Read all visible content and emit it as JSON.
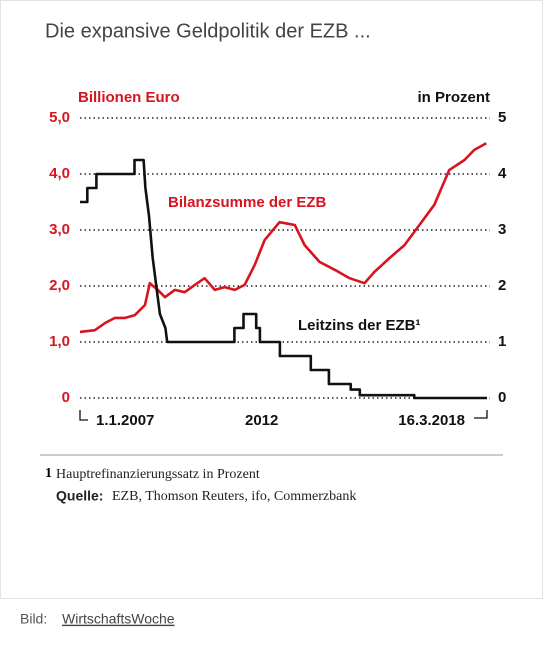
{
  "chart_data": {
    "type": "line",
    "title": "Die expansive Geldpolitik der EZB ...",
    "y_label": "Billionen Euro",
    "y2_label": "in Prozent",
    "xlim": [
      2007,
      2018.2
    ],
    "xticks": [
      {
        "value": 2007,
        "label": "1.1.2007"
      },
      {
        "value": 2012,
        "label": "2012"
      },
      {
        "value": 2018.2,
        "label": "16.3.2018"
      }
    ],
    "ylim": [
      0,
      5
    ],
    "yticks": [
      {
        "value": 0,
        "label": "0"
      },
      {
        "value": 1,
        "label": "1,0"
      },
      {
        "value": 2,
        "label": "2,0"
      },
      {
        "value": 3,
        "label": "3,0"
      },
      {
        "value": 4,
        "label": "4,0"
      },
      {
        "value": 5,
        "label": "5,0"
      }
    ],
    "y2lim": [
      0,
      5
    ],
    "y2ticks": [
      0,
      1,
      2,
      3,
      4,
      5
    ],
    "grid": true,
    "series": [
      {
        "name": "Bilanzsumme der EZB",
        "color": "#d7141f",
        "x": [
          2007.0,
          2007.41,
          2007.69,
          2007.96,
          2008.24,
          2008.51,
          2008.79,
          2008.92,
          2009.14,
          2009.34,
          2009.61,
          2009.88,
          2010.16,
          2010.43,
          2010.71,
          2010.98,
          2011.26,
          2011.53,
          2011.81,
          2012.08,
          2012.49,
          2012.91,
          2013.18,
          2013.59,
          2014.01,
          2014.42,
          2014.83,
          2015.1,
          2015.52,
          2015.93,
          2016.34,
          2016.75,
          2017.16,
          2017.58,
          2017.85,
          2018.18
        ],
        "values": [
          1.18,
          1.21,
          1.34,
          1.43,
          1.43,
          1.48,
          1.66,
          2.05,
          1.93,
          1.8,
          1.93,
          1.89,
          2.02,
          2.14,
          1.93,
          1.98,
          1.93,
          2.02,
          2.38,
          2.82,
          3.14,
          3.09,
          2.73,
          2.43,
          2.29,
          2.14,
          2.05,
          2.25,
          2.5,
          2.73,
          3.09,
          3.45,
          4.07,
          4.25,
          4.43,
          4.55
        ]
      },
      {
        "name": "Leitzins der EZB¹",
        "color": "#111111",
        "axis": "y2",
        "x": [
          2007.0,
          2007.2,
          2007.2,
          2007.45,
          2007.45,
          2008.5,
          2008.5,
          2008.75,
          2008.8,
          2008.9,
          2009.0,
          2009.1,
          2009.2,
          2009.35,
          2009.4,
          2011.25,
          2011.25,
          2011.5,
          2011.5,
          2011.85,
          2011.85,
          2011.95,
          2011.95,
          2012.5,
          2012.5,
          2013.35,
          2013.35,
          2013.85,
          2013.85,
          2014.45,
          2014.45,
          2014.7,
          2014.7,
          2016.2,
          2016.2,
          2018.2
        ],
        "values": [
          3.5,
          3.5,
          3.75,
          3.75,
          4.0,
          4.0,
          4.25,
          4.25,
          3.75,
          3.25,
          2.5,
          2.0,
          1.5,
          1.25,
          1.0,
          1.0,
          1.25,
          1.25,
          1.5,
          1.5,
          1.25,
          1.25,
          1.0,
          1.0,
          0.75,
          0.75,
          0.5,
          0.5,
          0.25,
          0.25,
          0.15,
          0.15,
          0.05,
          0.05,
          0,
          0
        ]
      }
    ]
  },
  "footnote": {
    "marker": "1",
    "text": "Hauptrefinanzierungssatz in Prozent"
  },
  "source": {
    "label": "Quelle:",
    "text": "EZB, Thomson Reuters, ifo, Commerzbank"
  },
  "credit": {
    "label": "Bild:",
    "link": "WirtschaftsWoche"
  }
}
